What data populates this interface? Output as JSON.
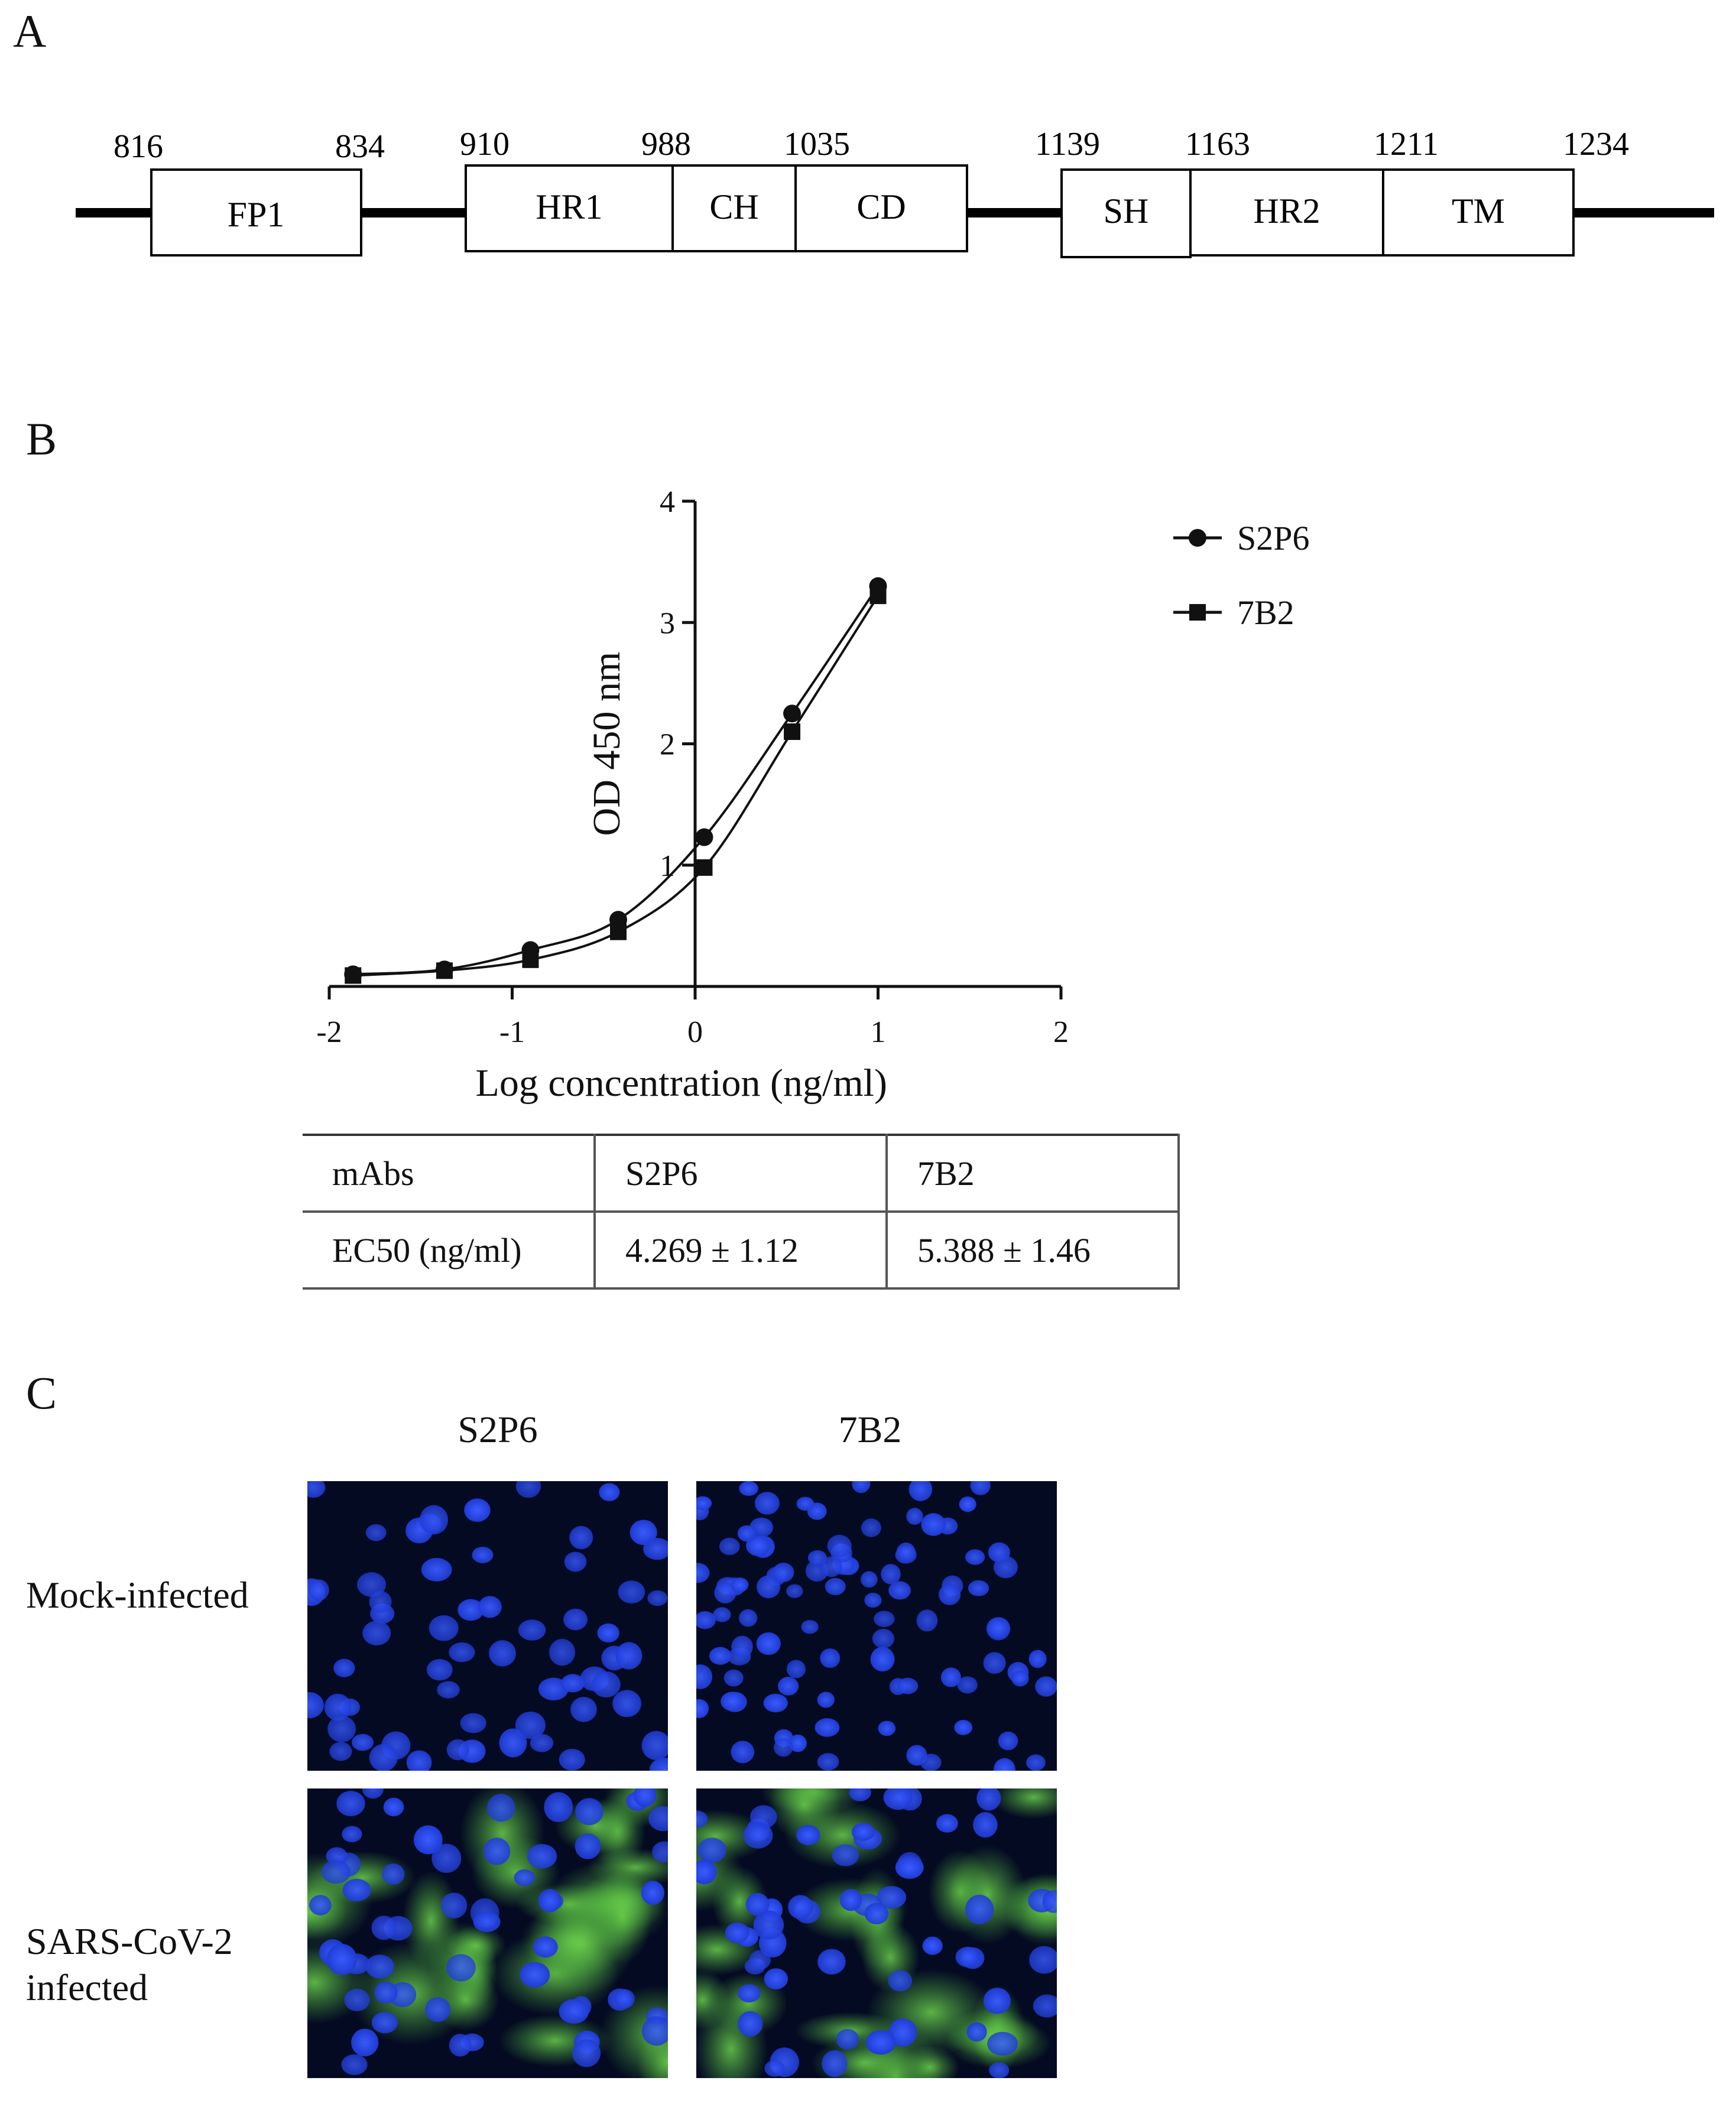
{
  "panels": {
    "a": "A",
    "b": "B",
    "c": "C"
  },
  "domain_map": {
    "positions": [
      "816",
      "834",
      "910",
      "988",
      "1035",
      "1139",
      "1163",
      "1211",
      "1234"
    ],
    "domains": [
      "FP1",
      "HR1",
      "CH",
      "CD",
      "SH",
      "HR2",
      "TM"
    ]
  },
  "chart_data": {
    "type": "scatter",
    "xlabel": "Log concentration (ng/ml)",
    "ylabel": "OD 450 nm",
    "xlim": [
      -2,
      2
    ],
    "ylim": [
      0,
      4
    ],
    "x_ticks": [
      "-2",
      "-1",
      "0",
      "1",
      "2"
    ],
    "y_ticks": [
      "1",
      "2",
      "3",
      "4"
    ],
    "legend_position": "top-right",
    "series": [
      {
        "name": "S2P6",
        "marker": "circle",
        "x": [
          -1.87,
          -1.37,
          -0.9,
          -0.42,
          0.05,
          0.53,
          1.0
        ],
        "y": [
          0.1,
          0.14,
          0.3,
          0.55,
          1.23,
          2.25,
          3.3
        ]
      },
      {
        "name": "7B2",
        "marker": "square",
        "x": [
          -1.87,
          -1.37,
          -0.9,
          -0.42,
          0.05,
          0.53,
          1.0
        ],
        "y": [
          0.09,
          0.13,
          0.22,
          0.45,
          0.98,
          2.1,
          3.22
        ]
      }
    ],
    "fit_curve": true,
    "line_color": "#111111"
  },
  "ec50_table": {
    "headers": [
      "mAbs",
      "S2P6",
      "7B2"
    ],
    "rows": [
      [
        "EC50 (ng/ml)",
        "4.269 ± 1.12",
        "5.388 ± 1.46"
      ]
    ]
  },
  "microscopy": {
    "columns": [
      "S2P6",
      "7B2"
    ],
    "rows": [
      "Mock-infected",
      "SARS-CoV-2\ninfected"
    ],
    "colors": {
      "background": "#040a22",
      "nuclei": "#1f3bd6",
      "signal": "#46a83a"
    }
  }
}
